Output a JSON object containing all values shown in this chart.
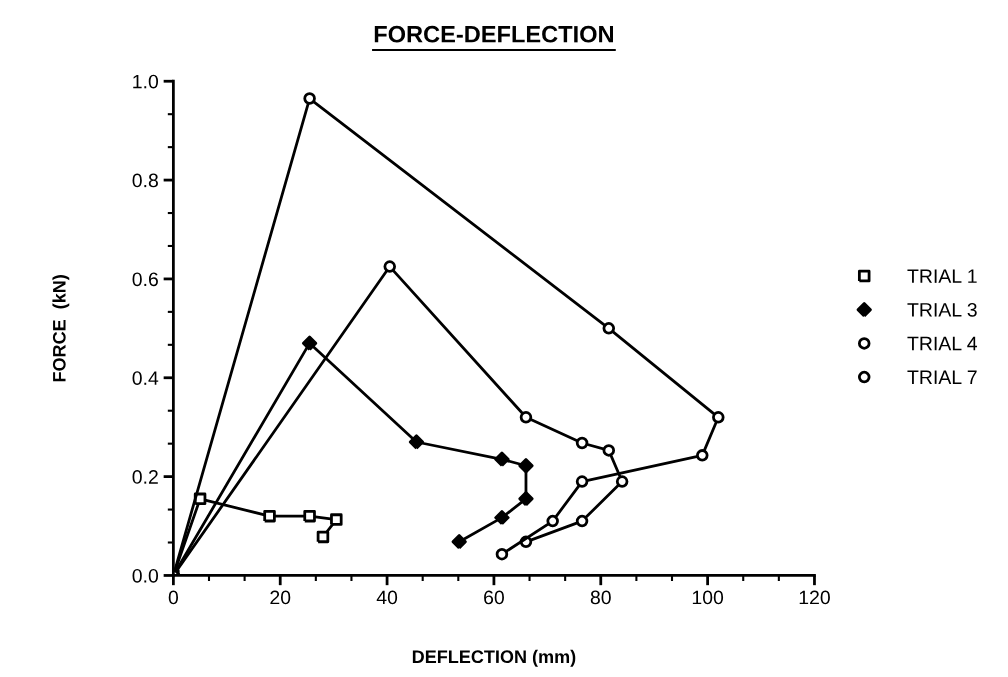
{
  "chart_data": {
    "type": "line",
    "title": "FORCE-DEFLECTION",
    "xlabel": "DEFLECTION (mm)",
    "ylabel": "FORCE  (kN)",
    "xlim": [
      0,
      120
    ],
    "xticks": [
      0,
      20,
      40,
      60,
      80,
      100,
      120
    ],
    "ylim": [
      0,
      1.0
    ],
    "yticks": [
      {
        "value": 0,
        "label": "0.0"
      },
      {
        "value": 0.2,
        "label": "0.2"
      },
      {
        "value": 0.4,
        "label": "0.4"
      },
      {
        "value": 0.6,
        "label": "0.6"
      },
      {
        "value": 0.8,
        "label": "0.8"
      },
      {
        "value": 1.0,
        "label": "1.0"
      }
    ],
    "grid": false,
    "legend": "right",
    "line_style": "solid",
    "series": [
      {
        "name": "TRIAL 1",
        "color": "#000000",
        "marker": "square",
        "x": [
          0,
          5,
          18,
          25.5,
          30.5,
          28
        ],
        "values": [
          0,
          0.155,
          0.12,
          0.12,
          0.113,
          0.078
        ]
      },
      {
        "name": "TRIAL 3",
        "color": "#000000",
        "marker": "diamond",
        "x": [
          0,
          25.5,
          45.5,
          61.5,
          66,
          66,
          61.5,
          53.5
        ],
        "values": [
          0,
          0.47,
          0.27,
          0.235,
          0.222,
          0.155,
          0.117,
          0.068
        ]
      },
      {
        "name": "TRIAL 4",
        "color": "#000000",
        "marker": "circle",
        "x": [
          0,
          40.5,
          66,
          76.5,
          81.5,
          84,
          76.5,
          66
        ],
        "values": [
          0,
          0.625,
          0.32,
          0.268,
          0.253,
          0.19,
          0.11,
          0.068
        ]
      },
      {
        "name": "TRIAL 7",
        "color": "#000000",
        "marker": "circle",
        "x": [
          0,
          25.5,
          81.5,
          102,
          99,
          76.5,
          71,
          61.5
        ],
        "values": [
          0,
          0.965,
          0.5,
          0.32,
          0.243,
          0.19,
          0.11,
          0.043
        ]
      }
    ]
  }
}
